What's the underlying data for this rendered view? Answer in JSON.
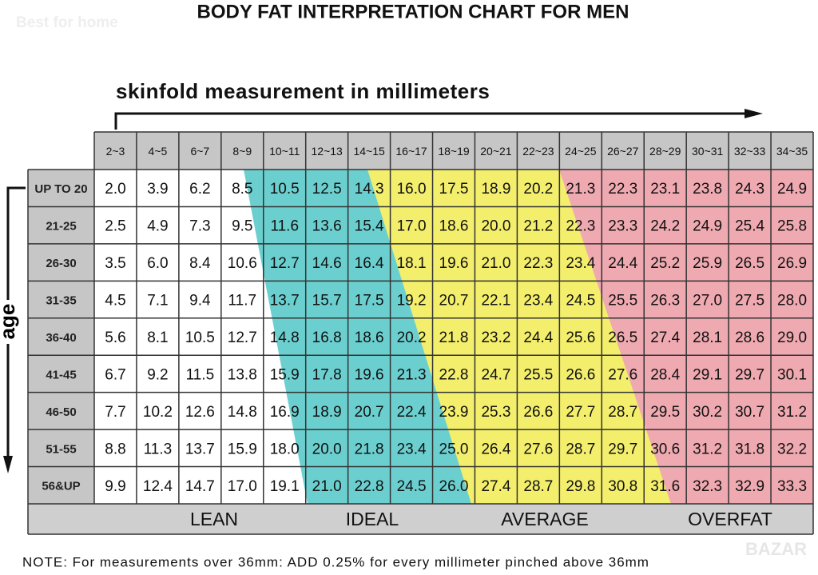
{
  "header": {
    "title": "BODY FAT INTERPRETATION CHART FOR MEN",
    "watermark": "Best for home",
    "watermark_2": "BAZAR"
  },
  "x_axis_label": "skinfold measurement in millimeters",
  "y_axis_label": "age",
  "columns": [
    "2~3",
    "4~5",
    "6~7",
    "8~9",
    "10~11",
    "12~13",
    "14~15",
    "16~17",
    "18~19",
    "20~21",
    "22~23",
    "24~25",
    "26~27",
    "28~29",
    "30~31",
    "32~33",
    "34~35"
  ],
  "rows": [
    {
      "label": "UP TO 20",
      "values": [
        "2.0",
        "3.9",
        "6.2",
        "8.5",
        "10.5",
        "12.5",
        "14.3",
        "16.0",
        "17.5",
        "18.9",
        "20.2",
        "21.3",
        "22.3",
        "23.1",
        "23.8",
        "24.3",
        "24.9"
      ]
    },
    {
      "label": "21-25",
      "values": [
        "2.5",
        "4.9",
        "7.3",
        "9.5",
        "11.6",
        "13.6",
        "15.4",
        "17.0",
        "18.6",
        "20.0",
        "21.2",
        "22.3",
        "23.3",
        "24.2",
        "24.9",
        "25.4",
        "25.8"
      ]
    },
    {
      "label": "26-30",
      "values": [
        "3.5",
        "6.0",
        "8.4",
        "10.6",
        "12.7",
        "14.6",
        "16.4",
        "18.1",
        "19.6",
        "21.0",
        "22.3",
        "23.4",
        "24.4",
        "25.2",
        "25.9",
        "26.5",
        "26.9"
      ]
    },
    {
      "label": "31-35",
      "values": [
        "4.5",
        "7.1",
        "9.4",
        "11.7",
        "13.7",
        "15.7",
        "17.5",
        "19.2",
        "20.7",
        "22.1",
        "23.4",
        "24.5",
        "25.5",
        "26.3",
        "27.0",
        "27.5",
        "28.0"
      ]
    },
    {
      "label": "36-40",
      "values": [
        "5.6",
        "8.1",
        "10.5",
        "12.7",
        "14.8",
        "16.8",
        "18.6",
        "20.2",
        "21.8",
        "23.2",
        "24.4",
        "25.6",
        "26.5",
        "27.4",
        "28.1",
        "28.6",
        "29.0"
      ]
    },
    {
      "label": "41-45",
      "values": [
        "6.7",
        "9.2",
        "11.5",
        "13.8",
        "15.9",
        "17.8",
        "19.6",
        "21.3",
        "22.8",
        "24.7",
        "25.5",
        "26.6",
        "27.6",
        "28.4",
        "29.1",
        "29.7",
        "30.1"
      ]
    },
    {
      "label": "46-50",
      "values": [
        "7.7",
        "10.2",
        "12.6",
        "14.8",
        "16.9",
        "18.9",
        "20.7",
        "22.4",
        "23.9",
        "25.3",
        "26.6",
        "27.7",
        "28.7",
        "29.5",
        "30.2",
        "30.7",
        "31.2"
      ]
    },
    {
      "label": "51-55",
      "values": [
        "8.8",
        "11.3",
        "13.7",
        "15.9",
        "18.0",
        "20.0",
        "21.8",
        "23.4",
        "25.0",
        "26.4",
        "27.6",
        "28.7",
        "29.7",
        "30.6",
        "31.2",
        "31.8",
        "32.2"
      ]
    },
    {
      "label": "56&UP",
      "values": [
        "9.9",
        "12.4",
        "14.7",
        "17.0",
        "19.1",
        "21.0",
        "22.8",
        "24.5",
        "26.0",
        "27.4",
        "28.7",
        "29.8",
        "30.8",
        "31.6",
        "32.3",
        "32.9",
        "33.3"
      ]
    }
  ],
  "zones": [
    "LEAN",
    "IDEAL",
    "AVERAGE",
    "OVERFAT"
  ],
  "note": "NOTE: For measurements over 36mm: ADD 0.25% for every millimeter pinched above 36mm"
}
